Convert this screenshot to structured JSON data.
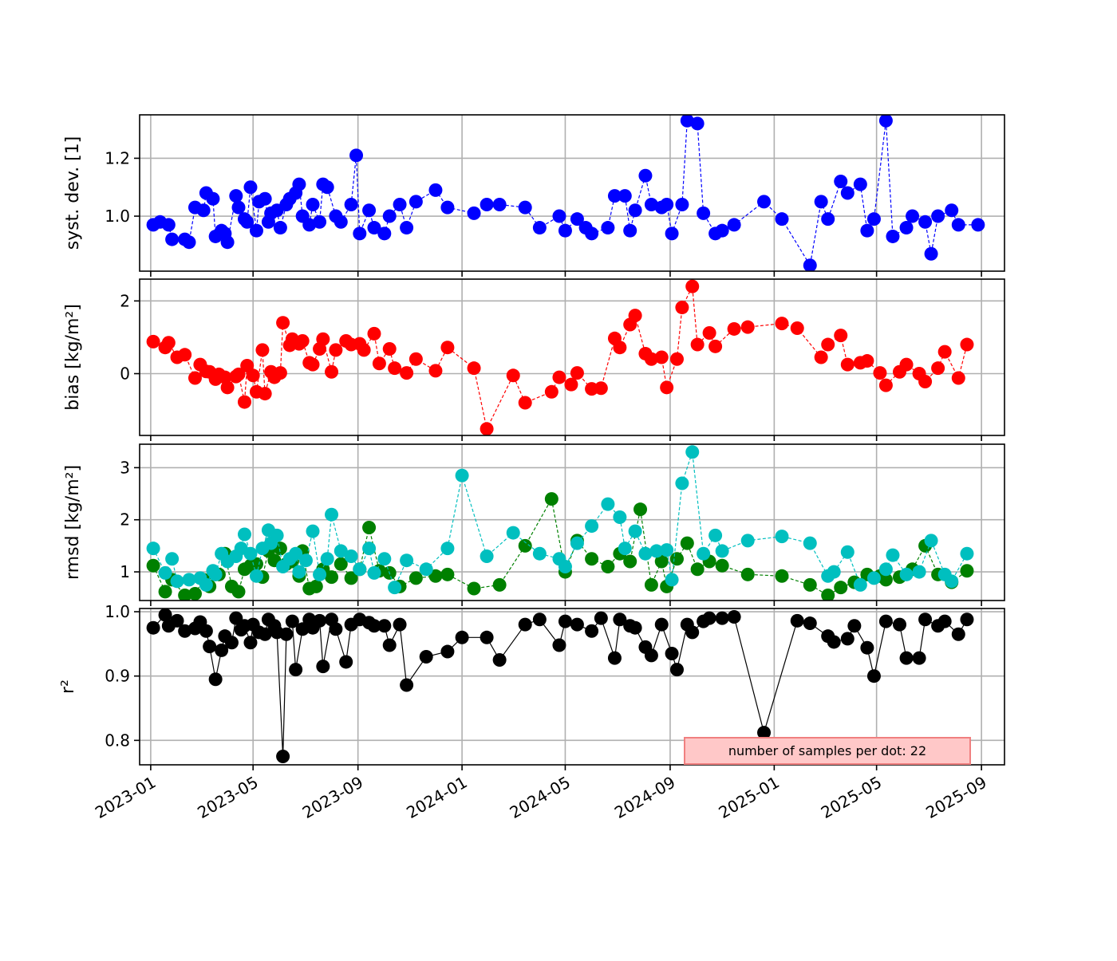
{
  "chart_data": {
    "type": "line",
    "x_axis": {
      "tick_labels": [
        "2023-01",
        "2023-05",
        "2023-09",
        "2024-01",
        "2024-05",
        "2024-09",
        "2025-01",
        "2025-05",
        "2025-09"
      ],
      "tick_dates": [
        "2023-01-01",
        "2023-05-01",
        "2023-09-01",
        "2024-01-01",
        "2024-05-01",
        "2024-09-01",
        "2025-01-01",
        "2025-05-01",
        "2025-09-01"
      ],
      "range": [
        "2022-12-19",
        "2025-09-28"
      ],
      "label_rotation_deg": 30
    },
    "annotation": {
      "text": "number of samples per dot: 22",
      "placement": "lower-right",
      "background": "#ffc8c8",
      "border": "#f08080"
    },
    "grid": true,
    "dates": [
      "2023-01-04",
      "2023-01-12",
      "2023-01-18",
      "2023-01-22",
      "2023-01-26",
      "2023-02-01",
      "2023-02-10",
      "2023-02-15",
      "2023-02-22",
      "2023-02-28",
      "2023-03-04",
      "2023-03-07",
      "2023-03-11",
      "2023-03-15",
      "2023-03-18",
      "2023-03-22",
      "2023-03-25",
      "2023-03-29",
      "2023-04-01",
      "2023-04-06",
      "2023-04-11",
      "2023-04-14",
      "2023-04-17",
      "2023-04-21",
      "2023-04-24",
      "2023-04-28",
      "2023-05-01",
      "2023-05-05",
      "2023-05-08",
      "2023-05-12",
      "2023-05-15",
      "2023-05-19",
      "2023-05-22",
      "2023-05-26",
      "2023-05-29",
      "2023-06-02",
      "2023-06-05",
      "2023-06-09",
      "2023-06-13",
      "2023-06-16",
      "2023-06-20",
      "2023-06-24",
      "2023-06-28",
      "2023-07-02",
      "2023-07-06",
      "2023-07-10",
      "2023-07-14",
      "2023-07-18",
      "2023-07-22",
      "2023-07-27",
      "2023-08-01",
      "2023-08-06",
      "2023-08-12",
      "2023-08-18",
      "2023-08-24",
      "2023-08-30",
      "2023-09-03",
      "2023-09-08",
      "2023-09-14",
      "2023-09-20",
      "2023-09-26",
      "2023-10-02",
      "2023-10-08",
      "2023-10-14",
      "2023-10-20",
      "2023-10-28",
      "2023-11-08",
      "2023-11-20",
      "2023-12-01",
      "2023-12-15",
      "2024-01-01",
      "2024-01-15",
      "2024-01-30",
      "2024-02-14",
      "2024-03-01",
      "2024-03-15",
      "2024-04-01",
      "2024-04-15",
      "2024-04-24",
      "2024-05-01",
      "2024-05-08",
      "2024-05-15",
      "2024-05-25",
      "2024-06-01",
      "2024-06-12",
      "2024-06-20",
      "2024-06-28",
      "2024-07-04",
      "2024-07-10",
      "2024-07-16",
      "2024-07-22",
      "2024-07-28",
      "2024-08-03",
      "2024-08-10",
      "2024-08-16",
      "2024-08-22",
      "2024-08-28",
      "2024-09-03",
      "2024-09-09",
      "2024-09-15",
      "2024-09-21",
      "2024-09-27",
      "2024-10-03",
      "2024-10-10",
      "2024-10-17",
      "2024-10-24",
      "2024-11-01",
      "2024-11-15",
      "2024-12-01",
      "2024-12-20",
      "2025-01-10",
      "2025-01-28",
      "2025-02-12",
      "2025-02-25",
      "2025-03-05",
      "2025-03-12",
      "2025-03-20",
      "2025-03-28",
      "2025-04-05",
      "2025-04-12",
      "2025-04-20",
      "2025-04-28",
      "2025-05-05",
      "2025-05-12",
      "2025-05-20",
      "2025-05-28",
      "2025-06-05",
      "2025-06-12",
      "2025-06-20",
      "2025-06-27",
      "2025-07-04",
      "2025-07-12",
      "2025-07-20",
      "2025-07-28",
      "2025-08-05",
      "2025-08-15",
      "2025-08-28"
    ],
    "panels": [
      {
        "id": "syst_dev",
        "ylabel": "syst. dev. [1]",
        "ylim": [
          0.81,
          1.35
        ],
        "yticks": [
          1.0,
          1.2
        ],
        "ytick_labels": [
          "1.0",
          "1.2"
        ],
        "series": [
          {
            "color": "#0000ff",
            "linestyle": "dashed",
            "values": [
              0.97,
              0.98,
              0.97,
              0.92,
              0.92,
              0.91,
              1.03,
              1.02,
              1.08,
              1.06,
              0.93,
              0.95,
              0.94,
              0.91,
              1.07,
              1.03,
              0.99,
              0.98,
              1.1,
              0.95,
              1.05,
              1.06,
              0.98,
              1.01,
              1.02,
              0.96,
              1.04,
              1.06,
              1.08,
              1.11,
              1.0,
              0.97,
              1.04,
              0.98,
              1.11,
              1.1,
              1.0,
              0.98,
              1.04,
              1.21,
              0.94,
              1.02,
              0.96,
              0.94,
              1.0,
              1.04,
              0.96,
              1.05,
              1.09,
              1.03,
              1.01,
              1.04,
              1.04,
              1.03,
              0.96,
              1.0,
              0.95,
              0.99,
              0.96,
              0.94,
              0.96,
              1.07,
              1.07,
              0.95,
              1.02,
              1.14,
              1.04,
              1.03,
              1.04,
              0.94,
              1.04,
              1.33,
              1.32,
              1.01,
              0.94,
              0.95,
              0.97,
              1.05,
              0.99,
              0.83,
              1.05,
              0.99,
              1.12,
              1.08,
              1.11,
              0.95,
              0.99,
              1.33,
              0.93,
              0.96,
              1.0,
              0.98,
              0.87,
              1.0,
              1.02,
              0.97,
              0.97
            ]
          }
        ]
      },
      {
        "id": "bias",
        "ylabel": "bias [kg/m²]",
        "ylim": [
          -1.7,
          2.6
        ],
        "yticks": [
          0,
          2
        ],
        "ytick_labels": [
          "0",
          "2"
        ],
        "series": [
          {
            "color": "#ff0000",
            "linestyle": "dashed",
            "values": [
              0.88,
              0.72,
              0.85,
              0.45,
              0.52,
              -0.12,
              0.25,
              0.06,
              0.05,
              -0.15,
              -0.02,
              -0.1,
              -0.38,
              -0.08,
              -0.02,
              -0.78,
              0.22,
              -0.05,
              -0.5,
              0.65,
              -0.55,
              0.05,
              -0.1,
              0.02,
              1.4,
              0.78,
              0.95,
              0.82,
              0.9,
              0.3,
              0.25,
              0.68,
              0.95,
              0.05,
              0.65,
              0.9,
              0.8,
              0.82,
              0.65,
              1.1,
              0.28,
              0.68,
              0.15,
              0.02,
              0.4,
              0.08,
              0.72,
              0.15,
              -1.52,
              -0.05,
              -0.8,
              -0.5,
              -0.1,
              -0.3,
              0.02,
              -0.42,
              -0.4,
              0.97,
              0.72,
              1.35,
              1.6,
              0.55,
              0.4,
              0.45,
              -0.38,
              0.4,
              1.82,
              2.4,
              0.8,
              1.12,
              0.75,
              1.23,
              1.28,
              1.38,
              1.25,
              0.45,
              0.8,
              1.05,
              0.25,
              0.3,
              0.35,
              0.02,
              -0.32,
              0.05,
              0.25,
              0.0,
              -0.22,
              0.15,
              0.6,
              -0.12,
              0.8
            ]
          }
        ]
      },
      {
        "id": "rmsd",
        "ylabel": "rmsd [kg/m²]",
        "ylim": [
          0.45,
          3.45
        ],
        "yticks": [
          1,
          2,
          3
        ],
        "ytick_labels": [
          "1",
          "2",
          "3"
        ],
        "series": [
          {
            "color": "#008000",
            "linestyle": "dashed",
            "values": [
              1.12,
              0.62,
              0.85,
              0.55,
              0.58,
              0.85,
              0.72,
              0.95,
              0.95,
              1.35,
              0.72,
              0.62,
              1.05,
              1.12,
              1.15,
              0.9,
              1.4,
              1.22,
              1.45,
              1.15,
              1.2,
              0.92,
              1.4,
              0.68,
              0.72,
              1.05,
              0.9,
              1.15,
              0.88,
              1.05,
              1.85,
              1.02,
              0.98,
              0.72,
              0.88,
              0.92,
              0.95,
              0.68,
              0.75,
              1.5,
              2.4,
              1.0,
              1.6,
              1.25,
              1.1,
              1.35,
              1.2,
              2.2,
              0.75,
              1.2,
              0.72,
              1.25,
              1.55,
              1.05,
              1.2,
              1.12,
              0.95,
              0.92,
              0.75,
              0.55,
              0.7,
              0.8,
              0.95,
              0.92,
              0.85,
              0.9,
              1.05,
              1.5,
              0.95,
              0.8,
              1.02
            ]
          },
          {
            "color": "#00bfbf",
            "linestyle": "dashed",
            "values": [
              1.45,
              0.98,
              1.25,
              0.82,
              0.85,
              0.88,
              0.75,
              1.02,
              0.95,
              1.35,
              1.2,
              1.3,
              1.45,
              1.72,
              1.35,
              0.92,
              1.45,
              1.8,
              1.55,
              1.7,
              1.1,
              1.25,
              1.35,
              1.0,
              1.22,
              1.78,
              0.95,
              1.25,
              2.1,
              1.4,
              1.3,
              1.05,
              1.45,
              0.98,
              1.25,
              0.7,
              1.22,
              1.05,
              1.45,
              2.85,
              1.3,
              1.75,
              1.35,
              1.25,
              1.1,
              1.55,
              1.88,
              2.3,
              2.05,
              1.45,
              1.78,
              1.35,
              1.4,
              1.42,
              0.85,
              2.7,
              3.3,
              1.35,
              1.7,
              1.4,
              1.6,
              1.68,
              1.55,
              0.92,
              1.0,
              1.38,
              0.75,
              0.88,
              1.05,
              1.32,
              0.95,
              1.0,
              1.6,
              0.95,
              0.82,
              1.35
            ]
          }
        ]
      },
      {
        "id": "r2",
        "ylabel": "r²",
        "ylim": [
          0.762,
          1.005
        ],
        "yticks": [
          0.8,
          0.9,
          1.0
        ],
        "ytick_labels": [
          "0.8",
          "0.9",
          "1.0"
        ],
        "series": [
          {
            "color": "#000000",
            "linestyle": "solid",
            "values": [
              0.975,
              0.995,
              0.978,
              0.986,
              0.97,
              0.974,
              0.984,
              0.97,
              0.946,
              0.895,
              0.94,
              0.962,
              0.952,
              0.99,
              0.972,
              0.978,
              0.952,
              0.98,
              0.968,
              0.965,
              0.988,
              0.978,
              0.968,
              0.775,
              0.965,
              0.985,
              0.91,
              0.973,
              0.988,
              0.975,
              0.986,
              0.915,
              0.988,
              0.973,
              0.922,
              0.98,
              0.988,
              0.983,
              0.978,
              0.978,
              0.948,
              0.98,
              0.886,
              0.93,
              0.938,
              0.96,
              0.96,
              0.925,
              0.98,
              0.988,
              0.948,
              0.985,
              0.98,
              0.97,
              0.99,
              0.928,
              0.988,
              0.978,
              0.975,
              0.945,
              0.932,
              0.98,
              0.935,
              0.91,
              0.98,
              0.968,
              0.985,
              0.99,
              0.99,
              0.992,
              0.812,
              0.986,
              0.982,
              0.962,
              0.953,
              0.958,
              0.978,
              0.944,
              0.9,
              0.985,
              0.98,
              0.928,
              0.928,
              0.988,
              0.978,
              0.985,
              0.965,
              0.988
            ]
          }
        ]
      }
    ]
  }
}
